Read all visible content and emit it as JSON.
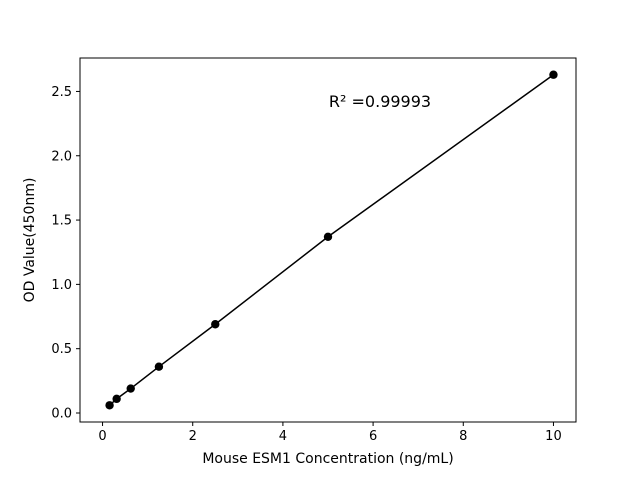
{
  "figure": {
    "background": "#ffffff"
  },
  "chart_data": {
    "type": "scatter",
    "title": "",
    "xlabel": "Mouse ESM1 Concentration (ng/mL)",
    "ylabel": "OD Value(450nm)",
    "annotation": "R² =0.99993",
    "x": [
      0.156,
      0.3125,
      0.625,
      1.25,
      2.5,
      5,
      10
    ],
    "y": [
      0.06,
      0.11,
      0.19,
      0.36,
      0.69,
      1.37,
      2.63
    ],
    "line": true,
    "line_color": "#000000",
    "marker_color": "#000000",
    "marker_radius": 4.2,
    "xlim": [
      -0.5,
      10.5
    ],
    "ylim": [
      -0.07,
      2.76
    ],
    "xticks": [
      0,
      2,
      4,
      6,
      8,
      10
    ],
    "xtick_labels": [
      "0",
      "2",
      "4",
      "6",
      "8",
      "10"
    ],
    "yticks": [
      0.0,
      0.5,
      1.0,
      1.5,
      2.0,
      2.5
    ],
    "ytick_labels": [
      "0.0",
      "0.5",
      "1.0",
      "1.5",
      "2.0",
      "2.5"
    ],
    "grid": false,
    "legend": null
  }
}
